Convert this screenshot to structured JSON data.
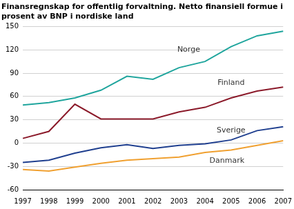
{
  "chart_data": {
    "type": "line",
    "title": [
      "Finansregnskap for offentlig forvaltning. Netto finansiell formue i",
      "prosent av BNP i nordiske land"
    ],
    "categories": [
      "1997",
      "1998",
      "1999",
      "2000",
      "2001",
      "2002",
      "2003",
      "2004",
      "2005",
      "2006",
      "2007"
    ],
    "series": [
      {
        "name": "Norge",
        "color": "#1fa59d",
        "values": [
          49,
          52,
          58,
          68,
          86,
          82,
          97,
          105,
          124,
          138,
          144
        ]
      },
      {
        "name": "Finland",
        "color": "#8b1a2a",
        "values": [
          6,
          15,
          50,
          31,
          31,
          31,
          40,
          46,
          58,
          67,
          72
        ]
      },
      {
        "name": "Sverige",
        "color": "#1f3f8f",
        "values": [
          -25,
          -22,
          -13,
          -6,
          -2,
          -7,
          -3,
          -1,
          4,
          16,
          21
        ]
      },
      {
        "name": "Danmark",
        "color": "#f0a030",
        "values": [
          -34,
          -36,
          -31,
          -26,
          -22,
          -20,
          -18,
          -12,
          -9,
          -3,
          3
        ]
      }
    ],
    "ylim": [
      -60,
      150
    ],
    "yticks": [
      -60,
      -30,
      0,
      30,
      60,
      90,
      120,
      150
    ],
    "grid": true
  }
}
